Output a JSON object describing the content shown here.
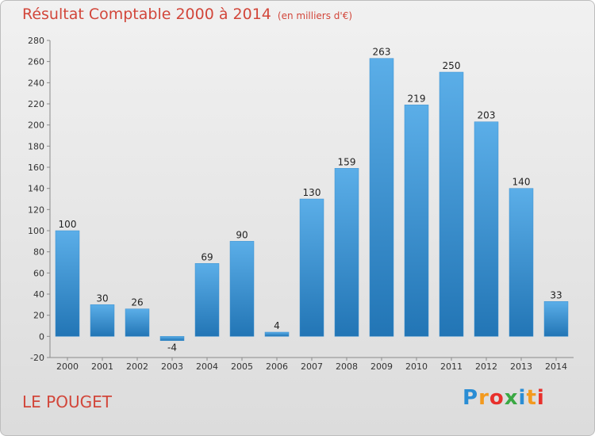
{
  "header": {
    "title": "Résultat Comptable 2000 à 2014",
    "subtitle": "(en milliers d'€)"
  },
  "footer": {
    "city": "LE POUGET",
    "logo_letters": [
      "P",
      "r",
      "o",
      "x",
      "i",
      "t",
      "i"
    ],
    "logo_colors": [
      "#2a8dd4",
      "#f39a1e",
      "#e8302c",
      "#3aa843",
      "#2a8dd4",
      "#f39a1e",
      "#e8302c"
    ]
  },
  "chart_data": {
    "type": "bar",
    "title": "Résultat Comptable 2000 à 2014",
    "subtitle": "(en milliers d'€)",
    "categories": [
      "2000",
      "2001",
      "2002",
      "2003",
      "2004",
      "2005",
      "2006",
      "2007",
      "2008",
      "2009",
      "2010",
      "2011",
      "2012",
      "2013",
      "2014"
    ],
    "values": [
      100,
      30,
      26,
      -4,
      69,
      90,
      4,
      130,
      159,
      263,
      219,
      250,
      203,
      140,
      33
    ],
    "ylim": [
      -20,
      280
    ],
    "yticks": [
      -20,
      0,
      20,
      40,
      60,
      80,
      100,
      120,
      140,
      160,
      180,
      200,
      220,
      240,
      260,
      280
    ],
    "grid": false,
    "bar_color_top": "#5baee8",
    "bar_color_bottom": "#2275b5"
  }
}
